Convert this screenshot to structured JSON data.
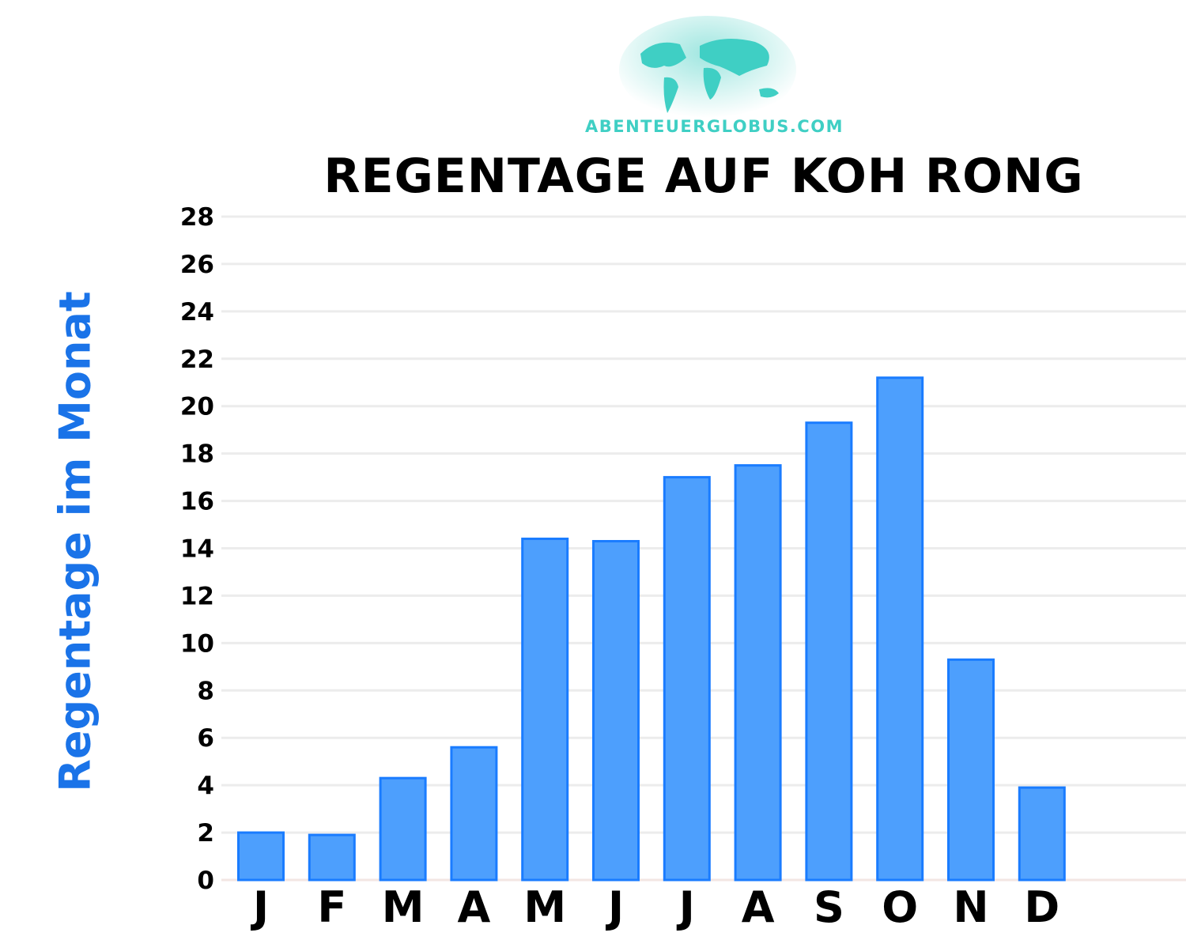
{
  "logo": {
    "text": "ABENTEUERGLOBUS.COM",
    "icon": "world-map-globe-icon",
    "color": "#3fcfc4"
  },
  "chart_data": {
    "type": "bar",
    "title": "REGENTAGE AUF KOH RONG",
    "xlabel": "",
    "ylabel": "Regentage im Monat",
    "categories": [
      "J",
      "F",
      "M",
      "A",
      "M",
      "J",
      "J",
      "A",
      "S",
      "O",
      "N",
      "D"
    ],
    "values": [
      2.0,
      1.9,
      4.3,
      5.6,
      14.4,
      14.3,
      17.0,
      17.5,
      19.3,
      21.2,
      9.3,
      3.9
    ],
    "ylim": [
      0,
      28
    ],
    "yticks": [
      0,
      2,
      4,
      6,
      8,
      10,
      12,
      14,
      16,
      18,
      20,
      22,
      24,
      26,
      28
    ],
    "grid": true,
    "bar_color": "#4d9ffd",
    "bar_border": "#1a7cff",
    "ylabel_color": "#1a73e8"
  }
}
